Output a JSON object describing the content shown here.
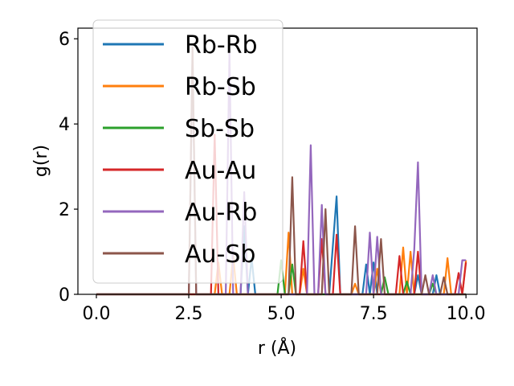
{
  "chart_data": {
    "type": "line",
    "xlabel": "r (Å)",
    "ylabel": "g(r)",
    "xlim": [
      -0.5,
      10.3
    ],
    "ylim": [
      0,
      6.25
    ],
    "xticks": [
      0.0,
      2.5,
      5.0,
      7.5,
      10.0
    ],
    "xtick_labels": [
      "0.0",
      "2.5",
      "5.0",
      "7.5",
      "10.0"
    ],
    "yticks": [
      0,
      2,
      4,
      6
    ],
    "ytick_labels": [
      "0",
      "2",
      "4",
      "6"
    ],
    "grid": false,
    "legend_position": "top-left",
    "series": [
      {
        "name": "Rb-Rb",
        "color": "#1f77b4",
        "points": [
          [
            0,
            0
          ],
          [
            3.9,
            0
          ],
          [
            4.0,
            1.6
          ],
          [
            4.1,
            0
          ],
          [
            4.2,
            0.85
          ],
          [
            4.3,
            0
          ],
          [
            6.3,
            0
          ],
          [
            6.5,
            2.3
          ],
          [
            6.6,
            0
          ],
          [
            7.2,
            0
          ],
          [
            7.3,
            0.7
          ],
          [
            7.4,
            0
          ],
          [
            7.5,
            0.75
          ],
          [
            7.6,
            0
          ],
          [
            8.6,
            0
          ],
          [
            8.7,
            0.45
          ],
          [
            8.8,
            0
          ],
          [
            9.1,
            0
          ],
          [
            9.2,
            0.45
          ],
          [
            9.3,
            0
          ],
          [
            10.0,
            0
          ]
        ]
      },
      {
        "name": "Rb-Sb",
        "color": "#ff7f0e",
        "points": [
          [
            0,
            0
          ],
          [
            3.2,
            0
          ],
          [
            3.3,
            0.75
          ],
          [
            3.4,
            0
          ],
          [
            3.6,
            0
          ],
          [
            3.7,
            0.9
          ],
          [
            3.8,
            0
          ],
          [
            5.1,
            0
          ],
          [
            5.2,
            1.45
          ],
          [
            5.3,
            0
          ],
          [
            5.5,
            0
          ],
          [
            5.6,
            0.6
          ],
          [
            5.7,
            0
          ],
          [
            6.9,
            0
          ],
          [
            7.0,
            0.25
          ],
          [
            7.1,
            0
          ],
          [
            7.5,
            0
          ],
          [
            7.6,
            0.6
          ],
          [
            7.7,
            0
          ],
          [
            8.2,
            0
          ],
          [
            8.3,
            1.1
          ],
          [
            8.4,
            0
          ],
          [
            8.5,
            1.0
          ],
          [
            8.6,
            0
          ],
          [
            9.4,
            0
          ],
          [
            9.5,
            0.85
          ],
          [
            9.6,
            0
          ],
          [
            9.9,
            0
          ],
          [
            10.0,
            0.8
          ]
        ]
      },
      {
        "name": "Sb-Sb",
        "color": "#2ca02c",
        "points": [
          [
            0,
            0
          ],
          [
            4.9,
            0
          ],
          [
            5.0,
            0.8
          ],
          [
            5.1,
            0
          ],
          [
            5.2,
            0
          ],
          [
            5.3,
            0.7
          ],
          [
            5.4,
            0
          ],
          [
            7.7,
            0
          ],
          [
            7.8,
            0.4
          ],
          [
            7.9,
            0
          ],
          [
            8.3,
            0
          ],
          [
            8.4,
            0.3
          ],
          [
            8.5,
            0
          ],
          [
            9.0,
            0
          ],
          [
            9.1,
            0.25
          ],
          [
            9.2,
            0
          ],
          [
            10.0,
            0
          ]
        ]
      },
      {
        "name": "Au-Au",
        "color": "#d62728",
        "points": [
          [
            0,
            0
          ],
          [
            3.1,
            0
          ],
          [
            3.2,
            3.75
          ],
          [
            3.3,
            0
          ],
          [
            5.5,
            0
          ],
          [
            5.6,
            1.25
          ],
          [
            5.7,
            0
          ],
          [
            6.0,
            0
          ],
          [
            6.1,
            1.3
          ],
          [
            6.2,
            0
          ],
          [
            6.4,
            0
          ],
          [
            6.5,
            1.4
          ],
          [
            6.6,
            0
          ],
          [
            8.1,
            0
          ],
          [
            8.2,
            0.9
          ],
          [
            8.3,
            0
          ],
          [
            8.6,
            0
          ],
          [
            8.7,
            1.0
          ],
          [
            8.8,
            0
          ],
          [
            9.7,
            0
          ],
          [
            9.8,
            0.5
          ],
          [
            9.9,
            0
          ],
          [
            10.0,
            0.75
          ]
        ]
      },
      {
        "name": "Au-Rb",
        "color": "#9467bd",
        "points": [
          [
            0,
            0
          ],
          [
            2.5,
            0
          ],
          [
            2.6,
            5.6
          ],
          [
            2.7,
            0
          ],
          [
            3.5,
            0
          ],
          [
            3.6,
            5.7
          ],
          [
            3.7,
            0
          ],
          [
            3.9,
            0
          ],
          [
            4.0,
            2.4
          ],
          [
            4.1,
            0
          ],
          [
            5.7,
            0
          ],
          [
            5.8,
            3.5
          ],
          [
            5.9,
            0
          ],
          [
            6.0,
            0
          ],
          [
            6.1,
            2.1
          ],
          [
            6.2,
            0
          ],
          [
            7.3,
            0
          ],
          [
            7.4,
            1.45
          ],
          [
            7.5,
            0
          ],
          [
            7.6,
            1.35
          ],
          [
            7.7,
            0
          ],
          [
            8.5,
            0
          ],
          [
            8.6,
            1.05
          ],
          [
            8.7,
            3.1
          ],
          [
            8.8,
            0
          ],
          [
            9.0,
            0
          ],
          [
            9.1,
            0.45
          ],
          [
            9.2,
            0
          ],
          [
            9.8,
            0
          ],
          [
            9.9,
            0.8
          ],
          [
            10.0,
            0.8
          ]
        ]
      },
      {
        "name": "Au-Sb",
        "color": "#8c564b",
        "points": [
          [
            0,
            0
          ],
          [
            2.5,
            0
          ],
          [
            2.6,
            5.8
          ],
          [
            2.7,
            0
          ],
          [
            5.2,
            0
          ],
          [
            5.3,
            2.75
          ],
          [
            5.4,
            0
          ],
          [
            6.1,
            0
          ],
          [
            6.2,
            2.0
          ],
          [
            6.3,
            0
          ],
          [
            6.9,
            0
          ],
          [
            7.0,
            1.6
          ],
          [
            7.1,
            0
          ],
          [
            7.6,
            0
          ],
          [
            7.7,
            1.3
          ],
          [
            7.8,
            0
          ],
          [
            8.8,
            0
          ],
          [
            8.9,
            0.45
          ],
          [
            9.0,
            0
          ],
          [
            9.3,
            0
          ],
          [
            9.4,
            0.4
          ],
          [
            9.5,
            0
          ],
          [
            10.0,
            0
          ]
        ]
      }
    ]
  }
}
